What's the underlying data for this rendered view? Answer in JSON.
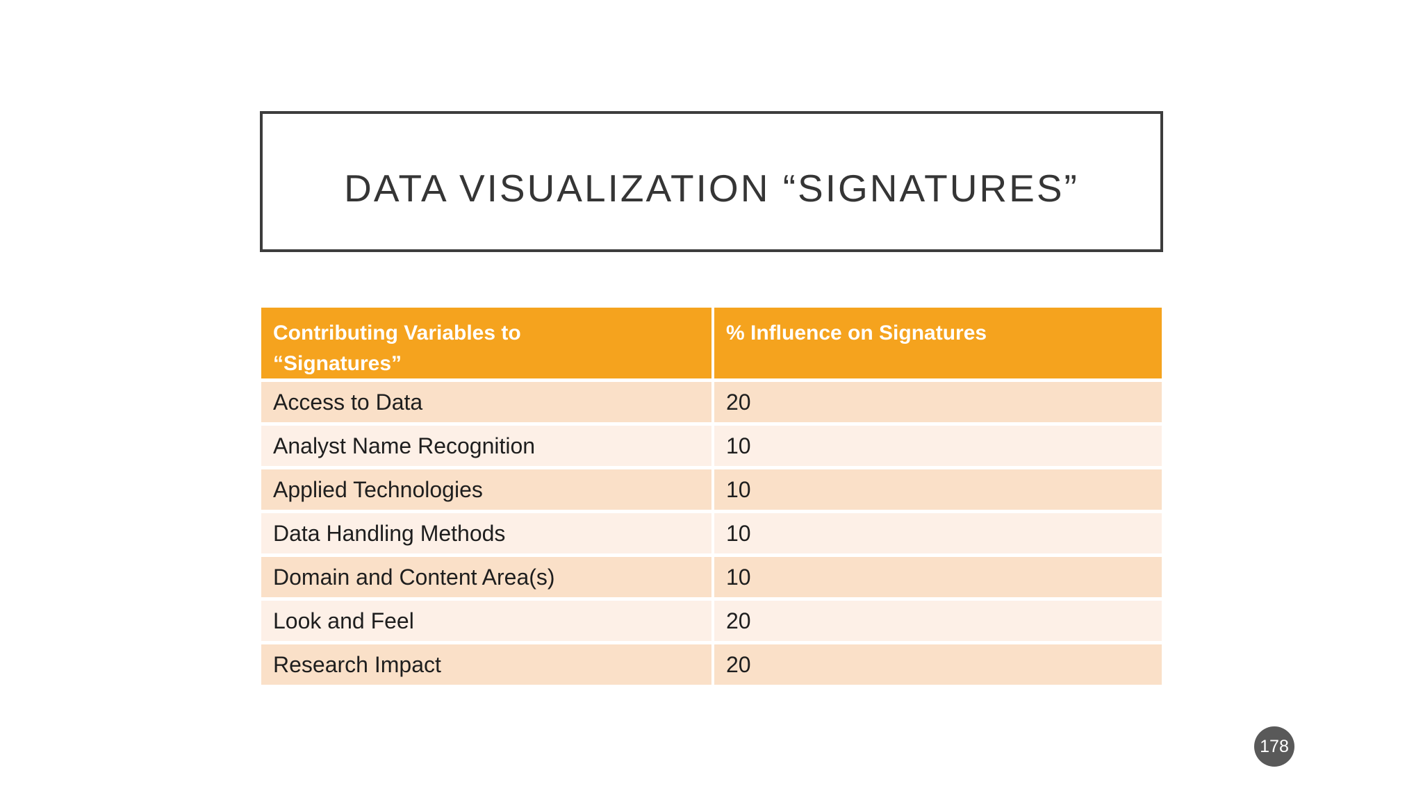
{
  "slide": {
    "title": "DATA VISUALIZATION “SIGNATURES”",
    "page_number": "178"
  },
  "table": {
    "col1_header": "Contributing Variables to “Signatures”",
    "col2_header": "% Influence on Signatures",
    "rows": [
      {
        "variable": "Access to Data",
        "influence": "20"
      },
      {
        "variable": "Analyst Name Recognition",
        "influence": "10"
      },
      {
        "variable": "Applied Technologies",
        "influence": "10"
      },
      {
        "variable": "Data Handling Methods",
        "influence": "10"
      },
      {
        "variable": "Domain and Content Area(s)",
        "influence": "10"
      },
      {
        "variable": "Look and Feel",
        "influence": "20"
      },
      {
        "variable": "Research Impact",
        "influence": "20"
      }
    ]
  },
  "colors": {
    "header_bg": "#f5a31e",
    "row_odd_bg": "#fae0c8",
    "row_even_bg": "#fdf0e7",
    "title_border": "#3d3d3d",
    "badge_bg": "#595959"
  }
}
